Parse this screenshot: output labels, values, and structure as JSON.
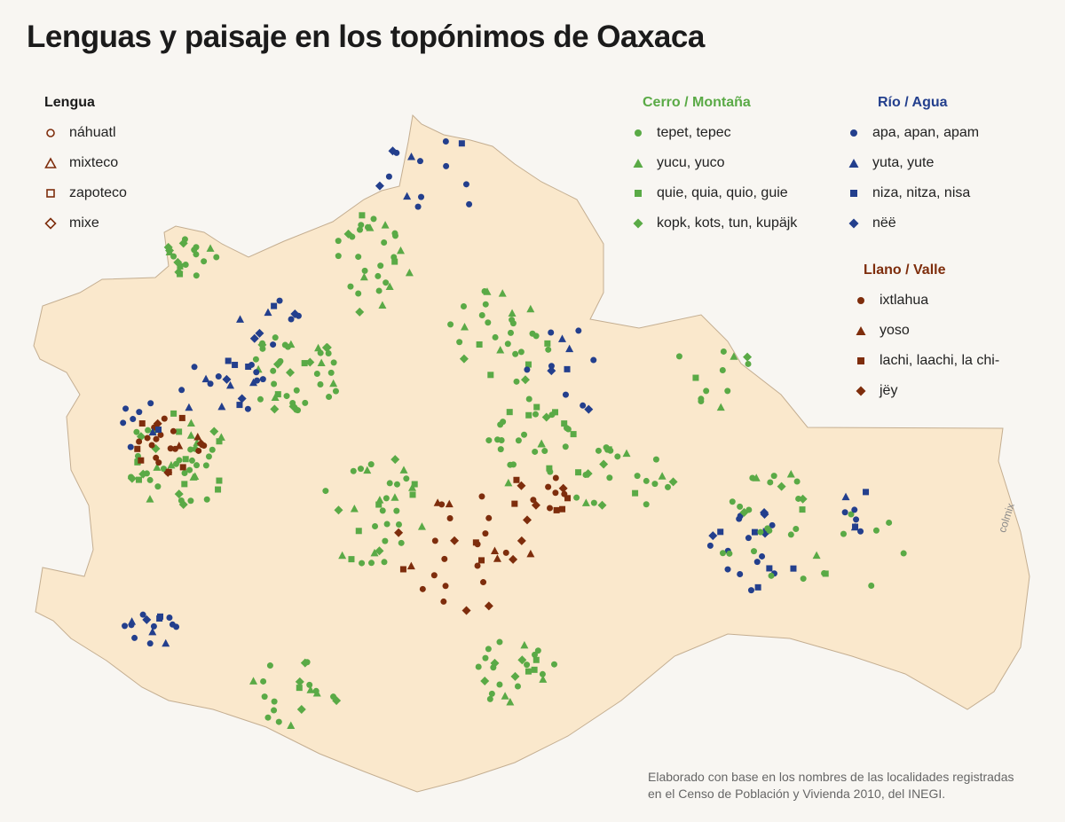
{
  "title": "Lenguas y paisaje en los topónimos de Oaxaca",
  "colors": {
    "cerro": "#5aaa46",
    "rio": "#233f8d",
    "llano": "#7e2d0c",
    "land": "#fae8cc",
    "border": "#c4ae91"
  },
  "legend_lengua": {
    "title": "Lengua",
    "items": [
      {
        "label": "náhuatl",
        "shape": "circle"
      },
      {
        "label": "mixteco",
        "shape": "triangle"
      },
      {
        "label": "zapoteco",
        "shape": "square"
      },
      {
        "label": "mixe",
        "shape": "diamond"
      }
    ]
  },
  "legend_cerro": {
    "title": "Cerro / Montaña",
    "items": [
      {
        "label": "tepet, tepec",
        "shape": "circle"
      },
      {
        "label": "yucu, yuco",
        "shape": "triangle"
      },
      {
        "label": "quie, quia, quio, guie",
        "shape": "square"
      },
      {
        "label": "kopk, kots, tun, kupäjk",
        "shape": "diamond"
      }
    ]
  },
  "legend_rio": {
    "title": "Río / Agua",
    "items": [
      {
        "label": "apa, apan, apam",
        "shape": "circle"
      },
      {
        "label": "yuta, yute",
        "shape": "triangle"
      },
      {
        "label": "niza, nitza, nisa",
        "shape": "square"
      },
      {
        "label": "nëë",
        "shape": "diamond"
      }
    ]
  },
  "legend_llano": {
    "title": "Llano / Valle",
    "items": [
      {
        "label": "ixtlahua",
        "shape": "circle"
      },
      {
        "label": "yoso",
        "shape": "triangle"
      },
      {
        "label": "lachi, laachi, la chi-",
        "shape": "square"
      },
      {
        "label": "jëy",
        "shape": "diamond"
      }
    ]
  },
  "note_line1": "Elaborado con base en los nombres de las localidades registradas",
  "note_line2": "en el Censo de Población y Vivienda 2010, del INEGI.",
  "credit": "colmix"
}
